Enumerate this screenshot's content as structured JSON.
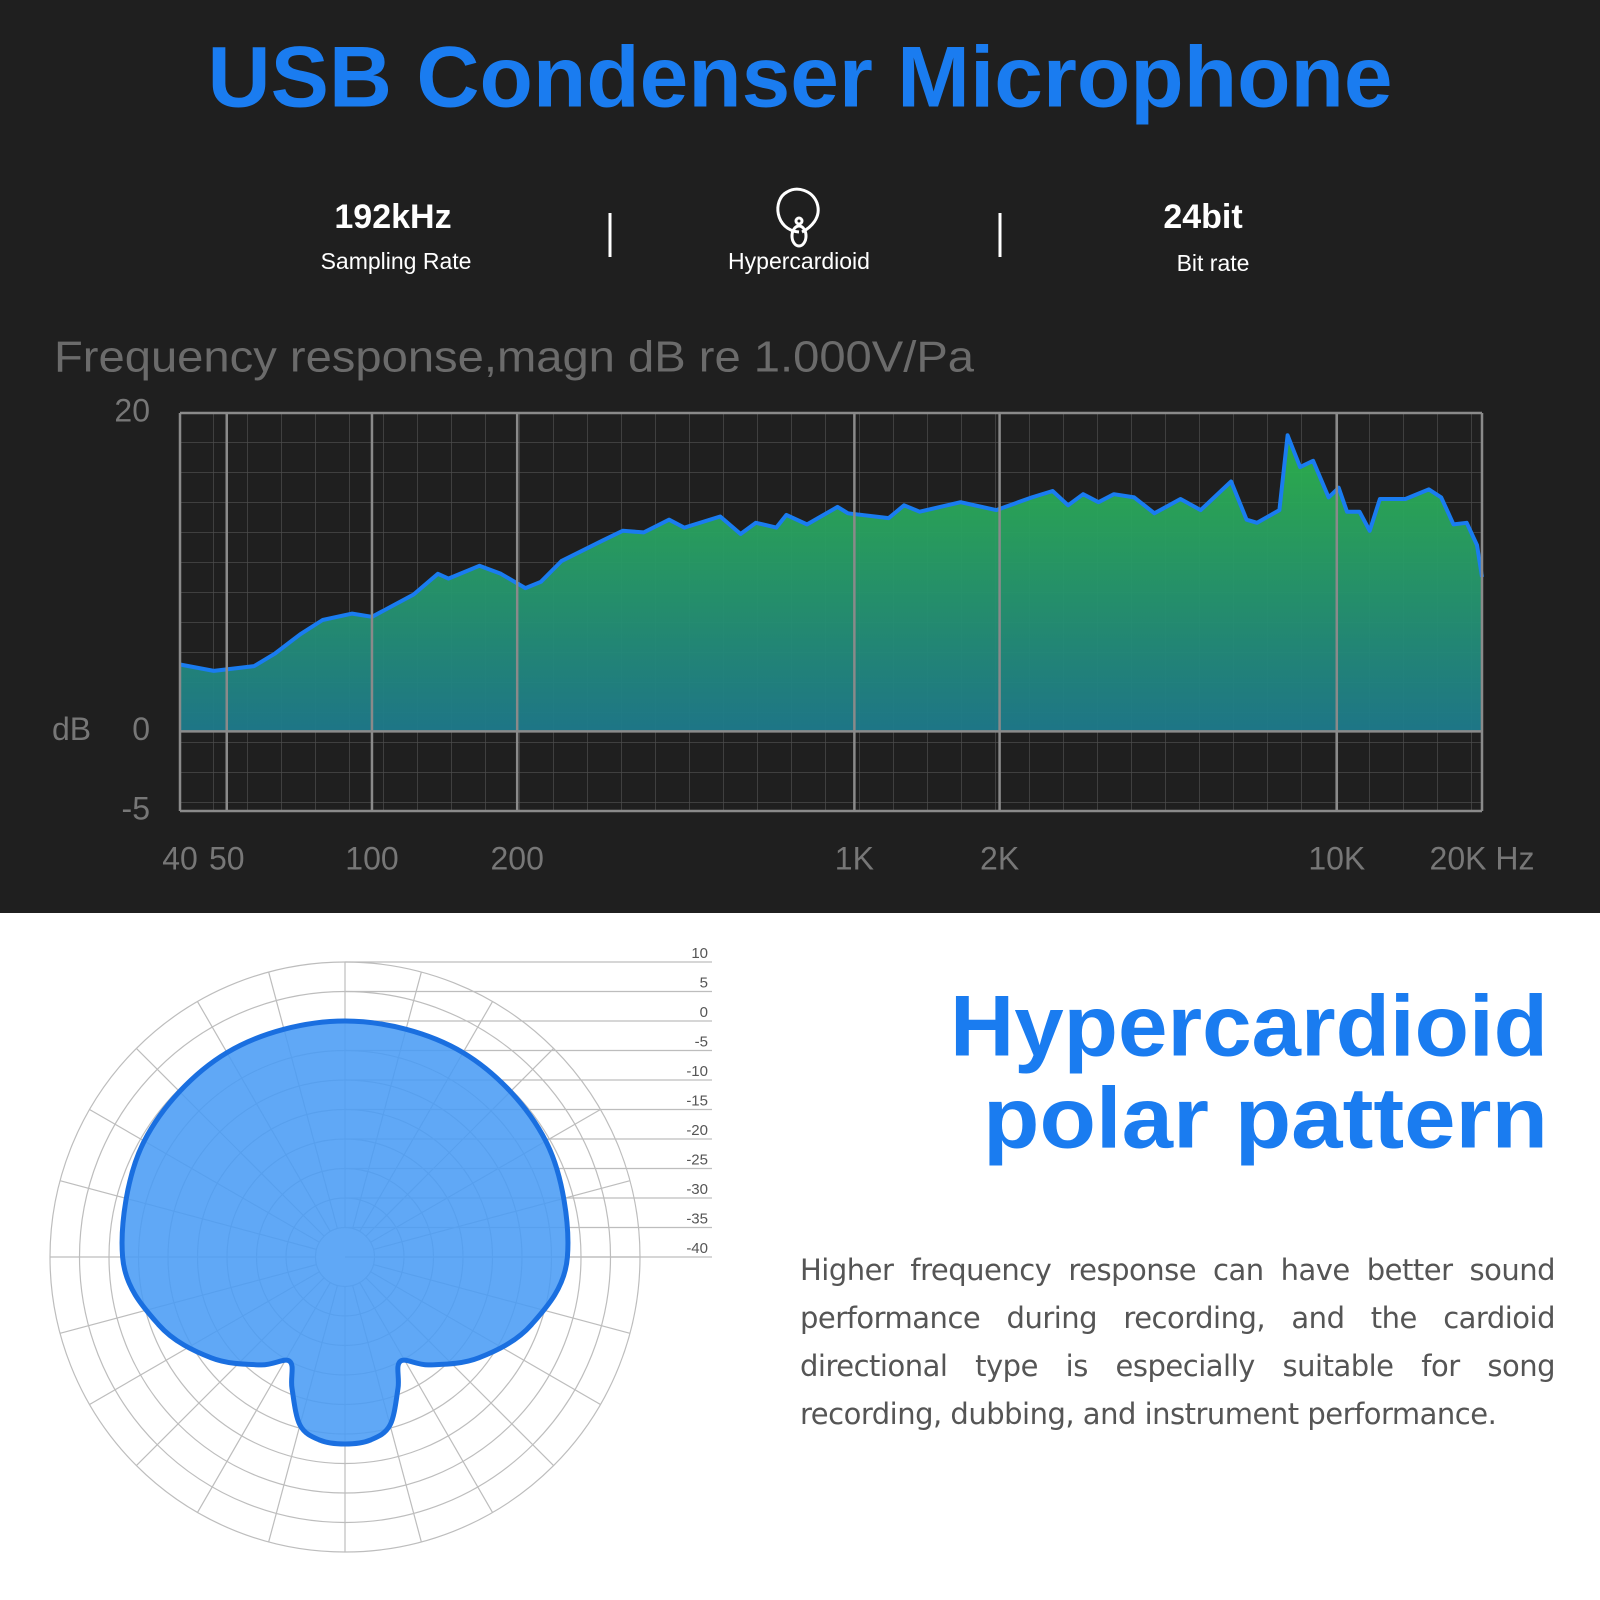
{
  "header": {
    "title": "USB Condenser Microphone"
  },
  "specs": [
    {
      "value": "192kHz",
      "label": "Sampling Rate"
    },
    {
      "label": "Hypercardioid"
    },
    {
      "value": "24bit",
      "label": "Bit rate"
    }
  ],
  "chart_data": [
    {
      "type": "area",
      "title": "Frequency response,magn dB re 1.000V/Pa",
      "y_label": "dB",
      "x_scale": "log",
      "x": [
        40,
        47,
        57,
        63,
        71,
        79,
        91,
        100,
        122,
        137,
        144,
        167,
        185,
        208,
        224,
        247,
        301,
        331,
        366,
        413,
        444,
        527,
        581,
        625,
        689,
        723,
        798,
        923,
        970,
        1178,
        1268,
        1365,
        1660,
        1968,
        2333,
        2576,
        2773,
        2979,
        3206,
        3451,
        3802,
        4188,
        4742,
        5224,
        6039,
        6501,
        6837,
        7603,
        7907,
        8393,
        8933,
        9616,
        10093,
        10498,
        11143,
        11702,
        12287,
        13873,
        15524,
        16458,
        17455,
        18590,
        19526,
        20000
      ],
      "series": [
        {
          "color": "#1a7cf0",
          "values": [
            4.2,
            3.8,
            4.1,
            4.9,
            6.1,
            7.0,
            7.4,
            7.2,
            8.6,
            9.9,
            9.6,
            10.4,
            9.9,
            9.0,
            9.4,
            10.7,
            12.0,
            12.6,
            12.5,
            13.3,
            12.8,
            13.5,
            12.4,
            13.1,
            12.8,
            13.6,
            13.0,
            14.1,
            13.7,
            13.4,
            14.2,
            13.8,
            14.4,
            13.9,
            14.7,
            15.1,
            14.2,
            14.9,
            14.4,
            14.9,
            14.7,
            13.7,
            14.6,
            13.9,
            15.7,
            13.3,
            13.1,
            13.9,
            18.6,
            16.6,
            17.0,
            14.7,
            15.3,
            13.8,
            13.8,
            12.6,
            14.6,
            14.6,
            15.2,
            14.7,
            13.0,
            13.1,
            11.7,
            9.7
          ]
        }
      ],
      "fill_gradient": [
        "#2db44a",
        "#1e7a8c"
      ],
      "xlim": [
        40,
        20000
      ],
      "xticks": [
        40,
        50,
        100,
        200,
        {
          "value": 1000,
          "label": "1K"
        },
        {
          "value": 2000,
          "label": "2K"
        },
        {
          "value": 10000,
          "label": "10K"
        },
        {
          "value": 20000,
          "label": "20K Hz"
        }
      ],
      "ylim": [
        -5,
        20
      ],
      "yticks": [
        -5,
        0,
        20
      ],
      "grid": true
    },
    {
      "type": "polar",
      "title": [
        "Hypercardioid",
        "polar pattern"
      ],
      "theta": [
        0,
        30,
        60,
        90,
        110,
        127,
        142,
        152,
        158,
        165,
        172,
        180,
        188,
        195,
        202,
        208,
        218,
        233,
        250,
        270,
        300,
        330
      ],
      "values": [
        0,
        0,
        -0.7,
        -2.3,
        -6.4,
        -11.6,
        -16.8,
        -20,
        -16,
        -10.5,
        -8.7,
        -8.3,
        -8.7,
        -10.5,
        -16,
        -20,
        -16.8,
        -11.6,
        -6.4,
        -2.3,
        -0.7,
        0
      ],
      "rlim": [
        -40,
        10
      ],
      "rticks": [
        10,
        5,
        0,
        -5,
        -10,
        -15,
        -20,
        -25,
        -30,
        -35,
        -40
      ],
      "color": "#4a9cf5",
      "edge_color": "#1a6fe0"
    }
  ],
  "description": "Higher frequency response can have better sound performance during recording, and the cardioid directional type is especially suitable for song recording, dubbing, and instrument performance."
}
